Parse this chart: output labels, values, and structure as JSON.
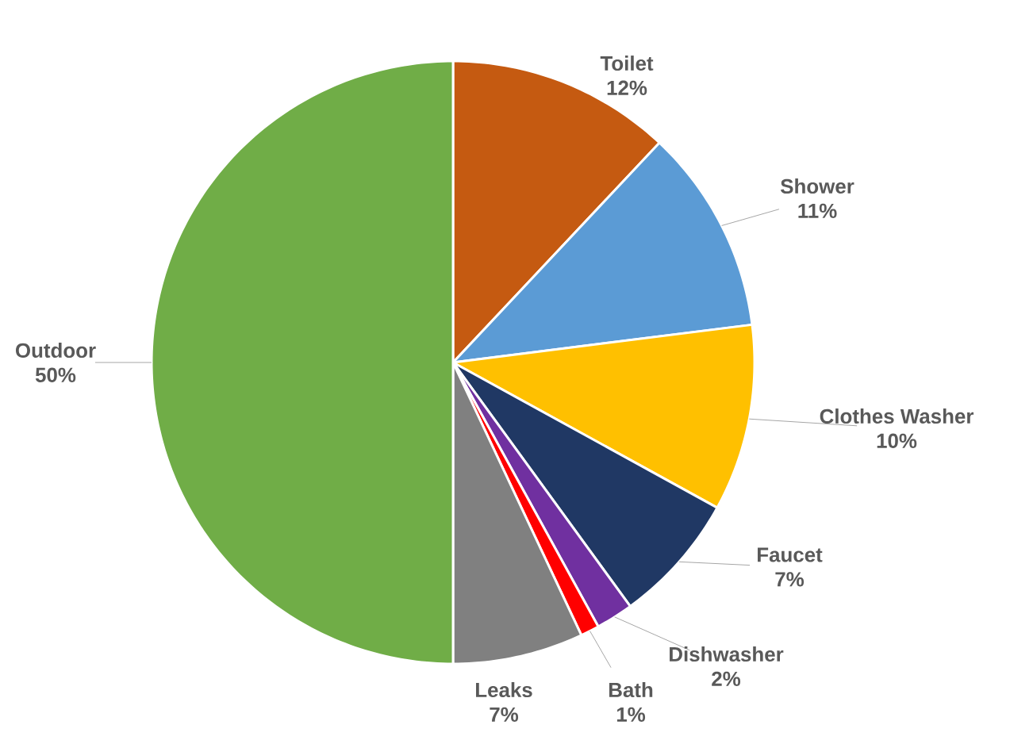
{
  "chart_data": {
    "type": "pie",
    "categories": [
      "Toilet",
      "Shower",
      "Clothes Washer",
      "Faucet",
      "Dishwasher",
      "Bath",
      "Leaks",
      "Outdoor"
    ],
    "values": [
      12,
      11,
      10,
      7,
      2,
      1,
      7,
      50
    ],
    "value_labels": [
      "12%",
      "11%",
      "10%",
      "7%",
      "2%",
      "1%",
      "7%",
      "50%"
    ],
    "colors": [
      "#c55a11",
      "#5b9bd5",
      "#ffc000",
      "#203864",
      "#7030a0",
      "#ff0000",
      "#808080",
      "#70ad47"
    ]
  }
}
